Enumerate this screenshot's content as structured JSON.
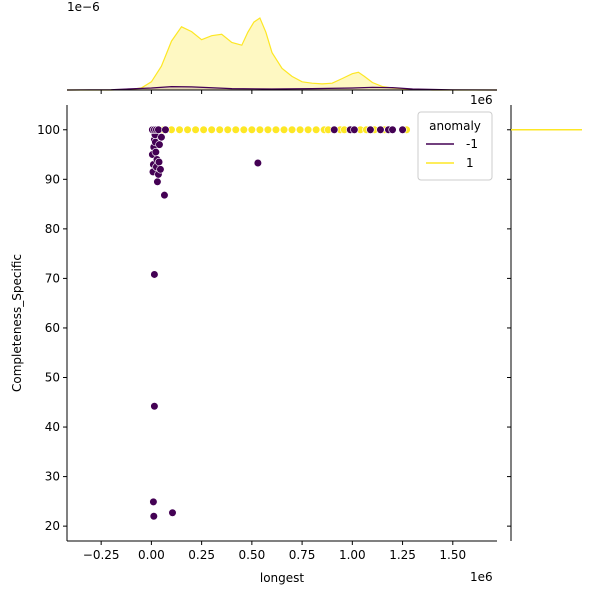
{
  "chart_data": {
    "type": "scatter",
    "title": "",
    "xlabel": "longest",
    "ylabel": "Completeness_Specific",
    "x_offset_text": "1e6",
    "y_offset_text": "1e6",
    "top_offset_text": "1e−6",
    "xlim": [
      -420000,
      1720000
    ],
    "ylim": [
      17,
      105
    ],
    "x_ticks": [
      -0.25,
      0.0,
      0.25,
      0.5,
      0.75,
      1.0,
      1.25,
      1.5
    ],
    "x_tick_labels": [
      "−0.25",
      "0.00",
      "0.25",
      "0.50",
      "0.75",
      "1.00",
      "1.25",
      "1.50"
    ],
    "y_ticks": [
      20,
      30,
      40,
      50,
      60,
      70,
      80,
      90,
      100
    ],
    "y_tick_labels": [
      "20",
      "30",
      "40",
      "50",
      "60",
      "70",
      "80",
      "90",
      "100"
    ],
    "legend": {
      "title": "anomaly",
      "placement": "top-right",
      "entries": [
        {
          "label": "-1",
          "color": "#440154"
        },
        {
          "label": "1",
          "color": "#fde725"
        }
      ]
    },
    "series": [
      {
        "name": "-1",
        "color": "#440154",
        "points": [
          [
            5000,
            95.0
          ],
          [
            8000,
            91.5
          ],
          [
            10000,
            93.0
          ],
          [
            12000,
            96.5
          ],
          [
            15000,
            98.0
          ],
          [
            18000,
            99.0
          ],
          [
            20000,
            97.5
          ],
          [
            22000,
            95.5
          ],
          [
            25000,
            92.5
          ],
          [
            28000,
            94.0
          ],
          [
            30000,
            89.5
          ],
          [
            35000,
            91.0
          ],
          [
            38000,
            93.5
          ],
          [
            40000,
            97.0
          ],
          [
            45000,
            92.0
          ],
          [
            50000,
            98.5
          ],
          [
            5000,
            100
          ],
          [
            15000,
            100
          ],
          [
            25000,
            100
          ],
          [
            35000,
            100
          ],
          [
            70000,
            100
          ],
          [
            65000,
            86.8
          ],
          [
            15000,
            70.8
          ],
          [
            15000,
            44.2
          ],
          [
            10000,
            24.9
          ],
          [
            12000,
            22.0
          ],
          [
            105000,
            22.7
          ],
          [
            530000,
            93.3
          ],
          [
            910000,
            100
          ],
          [
            990000,
            100
          ],
          [
            1010000,
            100
          ],
          [
            1090000,
            100
          ],
          [
            1140000,
            100
          ],
          [
            1180000,
            100
          ],
          [
            1200000,
            100
          ],
          [
            1250000,
            100
          ]
        ]
      },
      {
        "name": "1",
        "color": "#fde725",
        "points": [
          [
            60000,
            100
          ],
          [
            100000,
            100
          ],
          [
            140000,
            100
          ],
          [
            180000,
            100
          ],
          [
            220000,
            100
          ],
          [
            260000,
            100
          ],
          [
            300000,
            100
          ],
          [
            340000,
            100
          ],
          [
            380000,
            100
          ],
          [
            420000,
            100
          ],
          [
            460000,
            100
          ],
          [
            500000,
            100
          ],
          [
            540000,
            100
          ],
          [
            580000,
            100
          ],
          [
            620000,
            100
          ],
          [
            660000,
            100
          ],
          [
            700000,
            100
          ],
          [
            740000,
            100
          ],
          [
            780000,
            100
          ],
          [
            820000,
            100
          ],
          [
            860000,
            100
          ],
          [
            880000,
            100
          ],
          [
            940000,
            100
          ],
          [
            960000,
            100
          ],
          [
            1040000,
            100
          ],
          [
            1070000,
            100
          ],
          [
            1110000,
            100
          ],
          [
            1160000,
            100
          ],
          [
            1270000,
            100
          ]
        ]
      }
    ],
    "marginal_x": {
      "type": "kde",
      "series": [
        {
          "name": "1",
          "color": "#fde725",
          "x": [
            -420000,
            -200000,
            -100000,
            -50000,
            0,
            50000,
            100000,
            150000,
            200000,
            250000,
            300000,
            350000,
            400000,
            450000,
            480000,
            510000,
            540000,
            570000,
            600000,
            650000,
            700000,
            750000,
            800000,
            850000,
            900000,
            950000,
            1000000,
            1030000,
            1060000,
            1100000,
            1150000,
            1200000,
            1300000,
            1400000,
            1720000
          ],
          "density": [
            0,
            0,
            0.01,
            0.03,
            0.12,
            0.35,
            0.72,
            0.93,
            0.86,
            0.74,
            0.8,
            0.82,
            0.7,
            0.66,
            0.85,
            1.0,
            1.06,
            0.85,
            0.55,
            0.32,
            0.2,
            0.12,
            0.1,
            0.09,
            0.1,
            0.17,
            0.24,
            0.26,
            0.2,
            0.11,
            0.05,
            0.03,
            0.01,
            0,
            0
          ]
        },
        {
          "name": "-1",
          "color": "#440154",
          "x": [
            -420000,
            -200000,
            0,
            100000,
            200000,
            400000,
            600000,
            800000,
            1000000,
            1100000,
            1200000,
            1300000,
            1500000,
            1720000
          ],
          "density": [
            0,
            0.004,
            0.03,
            0.05,
            0.045,
            0.02,
            0.015,
            0.02,
            0.03,
            0.04,
            0.035,
            0.015,
            0.003,
            0
          ]
        }
      ]
    },
    "marginal_y": {
      "type": "kde",
      "series": [
        {
          "name": "1",
          "color": "#fde725",
          "y": 100
        }
      ]
    }
  }
}
